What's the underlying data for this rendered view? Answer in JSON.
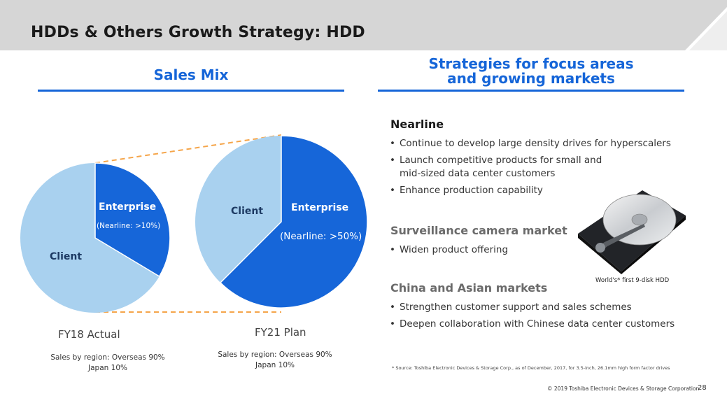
{
  "header": {
    "title": "HDDs & Others Growth Strategy: HDD"
  },
  "left": {
    "heading": "Sales Mix",
    "fy18": {
      "caption": "FY18 Actual",
      "region_line1": "Sales by region: Overseas 90%",
      "region_line2": "Japan 10%",
      "client_label": "Client",
      "enterprise_label": "Enterprise",
      "nearline_label": "(Nearline: >10%)"
    },
    "fy21": {
      "caption": "FY21 Plan",
      "region_line1": "Sales by region: Overseas 90%",
      "region_line2": "Japan 10%",
      "client_label": "Client",
      "enterprise_label": "Enterprise",
      "nearline_label": "(Nearline: >50%)"
    }
  },
  "right": {
    "heading_line1": "Strategies for focus areas",
    "heading_line2": "and growing markets",
    "nearline": {
      "title": "Nearline",
      "b1": "Continue to develop large density drives for hyperscalers",
      "b2a": "Launch competitive products for small and",
      "b2b": "mid-sized data center customers",
      "b3": "Enhance production capability"
    },
    "surveillance": {
      "title": "Surveillance camera market",
      "b1": "Widen product offering"
    },
    "china": {
      "title": "China and Asian markets",
      "b1": "Strengthen customer support and sales schemes",
      "b2": "Deepen collaboration with Chinese data center customers"
    },
    "hdd_caption": "World's* first 9-disk HDD"
  },
  "footer": {
    "source": "* Source: Toshiba Electronic Devices & Storage Corp., as of December, 2017, for 3.5-inch, 26.1mm high form factor drives",
    "copyright": "© 2019 Toshiba Electronic Devices & Storage Corporation",
    "page": "28"
  },
  "colors": {
    "accent": "#1565d8",
    "client": "#a9d1ef",
    "enterprise": "#1666d9",
    "connector": "#f5a54a",
    "title_bar": "#d6d6d6"
  }
}
